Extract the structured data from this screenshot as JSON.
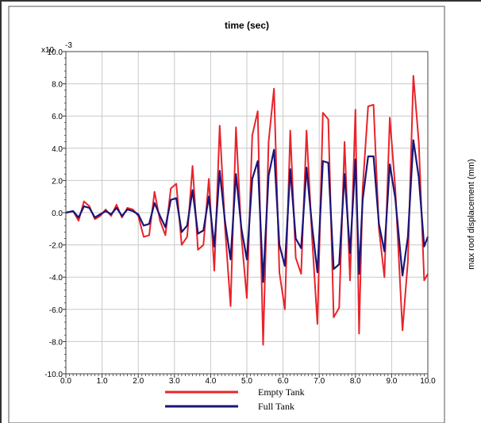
{
  "colors": {
    "empty_tank": "#e8242b",
    "full_tank": "#1a1578",
    "grid": "#c8c8c8",
    "frame": "#333333"
  },
  "chart_data": {
    "type": "line",
    "title": "time (sec)",
    "xlabel": "",
    "ylabel": "max roof displacement (mm)",
    "y_multiplier_label": "x10",
    "y_multiplier_exponent": "-3",
    "xlim": [
      0,
      10
    ],
    "ylim": [
      -10,
      10
    ],
    "grid": true,
    "legend_position": "bottom-center",
    "x_ticks": [
      "0.0",
      "1.0",
      "2.0",
      "3.0",
      "4.0",
      "5.0",
      "6.0",
      "7.0",
      "8.0",
      "9.0",
      "10.0"
    ],
    "y_ticks": [
      "10.0",
      "8.0",
      "6.0",
      "4.0",
      "2.0",
      "0.0",
      "-2.0",
      "-4.0",
      "-6.0",
      "-8.0",
      "-10.0"
    ],
    "series": [
      {
        "name": "Empty Tank",
        "color": "#e8242b",
        "x": [
          0.0,
          0.2,
          0.35,
          0.5,
          0.65,
          0.8,
          0.95,
          1.1,
          1.25,
          1.4,
          1.55,
          1.7,
          1.85,
          2.0,
          2.15,
          2.3,
          2.45,
          2.6,
          2.75,
          2.9,
          3.05,
          3.2,
          3.35,
          3.5,
          3.65,
          3.8,
          3.95,
          4.1,
          4.25,
          4.4,
          4.55,
          4.7,
          4.85,
          5.0,
          5.15,
          5.3,
          5.45,
          5.6,
          5.75,
          5.9,
          6.05,
          6.2,
          6.35,
          6.5,
          6.65,
          6.8,
          6.95,
          7.1,
          7.25,
          7.4,
          7.55,
          7.7,
          7.85,
          8.0,
          8.1,
          8.2,
          8.35,
          8.5,
          8.65,
          8.8,
          8.95,
          9.1,
          9.3,
          9.45,
          9.6,
          9.75,
          9.9,
          10.0
        ],
        "y": [
          0.0,
          0.1,
          -0.5,
          0.7,
          0.4,
          -0.4,
          -0.2,
          0.2,
          -0.2,
          0.5,
          -0.3,
          0.3,
          0.2,
          -0.2,
          -1.5,
          -1.4,
          1.3,
          -0.5,
          -1.4,
          1.5,
          1.8,
          -2.0,
          -1.5,
          2.9,
          -2.3,
          -2.0,
          2.1,
          -3.6,
          5.4,
          -1.0,
          -5.8,
          5.3,
          -1.5,
          -5.3,
          4.8,
          6.3,
          -8.2,
          4.4,
          7.7,
          -3.7,
          -6.0,
          5.1,
          -2.8,
          -3.8,
          5.1,
          -1.5,
          -6.9,
          6.2,
          5.8,
          -6.5,
          -5.9,
          4.4,
          -4.2,
          6.4,
          -7.5,
          1.5,
          6.6,
          6.7,
          -1.0,
          -4.0,
          5.9,
          1.5,
          -7.3,
          -3.0,
          8.5,
          4.4,
          -4.2,
          -3.8
        ]
      },
      {
        "name": "Full Tank",
        "color": "#1a1578",
        "x": [
          0.0,
          0.2,
          0.35,
          0.5,
          0.65,
          0.8,
          0.95,
          1.1,
          1.25,
          1.4,
          1.55,
          1.7,
          1.85,
          2.0,
          2.15,
          2.3,
          2.45,
          2.6,
          2.75,
          2.9,
          3.05,
          3.2,
          3.35,
          3.5,
          3.65,
          3.8,
          3.95,
          4.1,
          4.25,
          4.4,
          4.55,
          4.7,
          4.85,
          5.0,
          5.15,
          5.3,
          5.45,
          5.6,
          5.75,
          5.9,
          6.05,
          6.2,
          6.35,
          6.5,
          6.65,
          6.8,
          6.95,
          7.1,
          7.25,
          7.4,
          7.55,
          7.7,
          7.85,
          8.0,
          8.1,
          8.2,
          8.35,
          8.5,
          8.65,
          8.8,
          8.95,
          9.1,
          9.3,
          9.45,
          9.6,
          9.75,
          9.9,
          10.0
        ],
        "y": [
          0.0,
          0.1,
          -0.3,
          0.4,
          0.3,
          -0.3,
          -0.1,
          0.1,
          -0.1,
          0.3,
          -0.2,
          0.2,
          0.1,
          -0.1,
          -0.8,
          -0.7,
          0.6,
          -0.2,
          -0.9,
          0.8,
          0.9,
          -1.2,
          -0.8,
          1.4,
          -1.3,
          -1.1,
          1.0,
          -2.1,
          2.6,
          -0.6,
          -2.9,
          2.4,
          -1.0,
          -2.9,
          2.1,
          3.2,
          -4.3,
          2.3,
          3.9,
          -2.0,
          -3.3,
          2.7,
          -1.6,
          -2.2,
          2.8,
          -0.8,
          -3.7,
          3.2,
          3.1,
          -3.5,
          -3.2,
          2.4,
          -2.5,
          3.3,
          -3.8,
          0.8,
          3.5,
          3.5,
          -0.7,
          -2.4,
          3.0,
          0.9,
          -3.9,
          -1.5,
          4.5,
          2.2,
          -2.1,
          -1.5
        ]
      }
    ]
  }
}
